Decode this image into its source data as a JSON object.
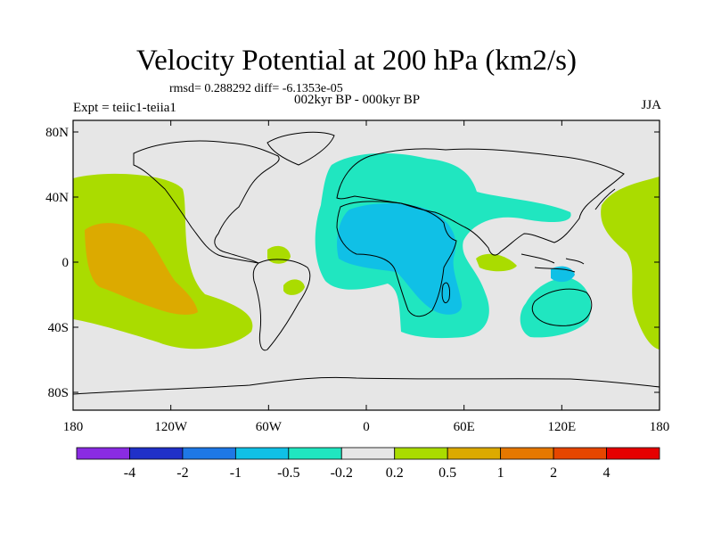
{
  "title": "Velocity Potential at 200 hPa (km2/s)",
  "stats": "rmsd= 0.288292 diff= -6.1353e-05",
  "left_label": "Expt = teiic1-teiia1",
  "center_label": "002kyr BP - 000kyr BP",
  "right_label": "JJA",
  "x_ticks": [
    "180",
    "120W",
    "60W",
    "0",
    "60E",
    "120E",
    "180"
  ],
  "y_ticks": [
    "80N",
    "40N",
    "0",
    "40S",
    "80S"
  ],
  "colorbar": {
    "colors": [
      "#8a2be2",
      "#2030c8",
      "#1e78e6",
      "#10c0e6",
      "#20e6c0",
      "#e6e6e6",
      "#aadc00",
      "#dcaa00",
      "#e67800",
      "#e64600",
      "#e60000"
    ],
    "labels": [
      "-4",
      "-2",
      "-1",
      "-0.5",
      "-0.2",
      "0.2",
      "0.5",
      "1",
      "2",
      "4"
    ]
  },
  "colors": {
    "background": "#e6e6e6",
    "positive_weak": "#aadc00",
    "positive_mid": "#dcaa00",
    "negative_weak": "#20e6c0",
    "negative_mid": "#10c0e6"
  }
}
